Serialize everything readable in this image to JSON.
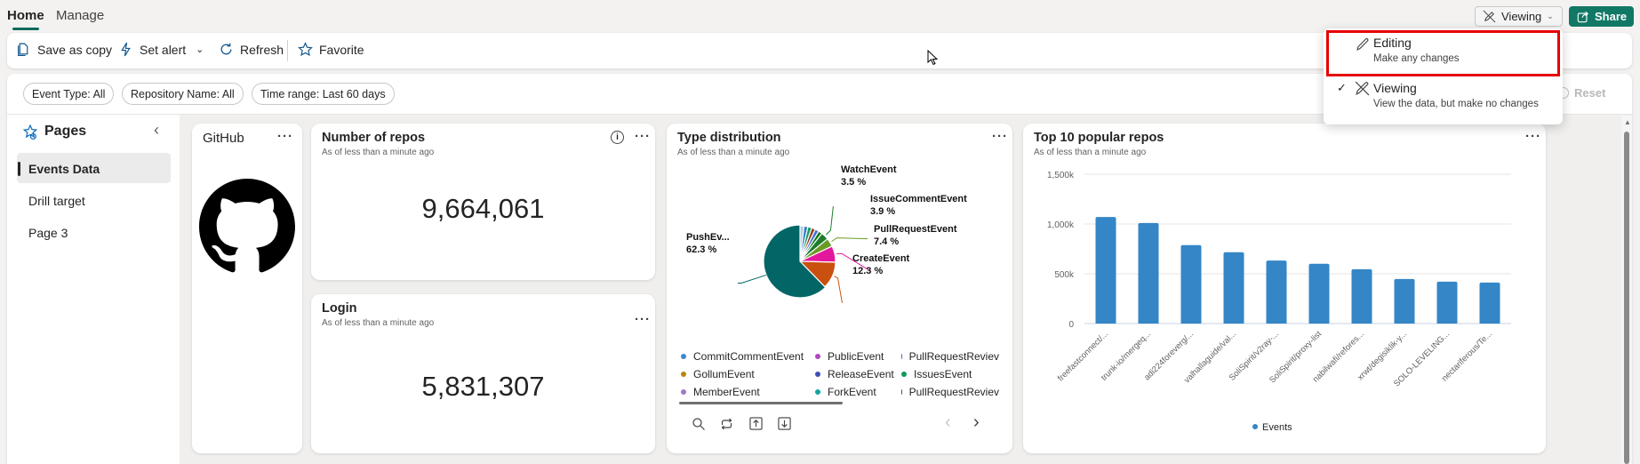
{
  "tabs": [
    {
      "label": "Home",
      "active": true
    },
    {
      "label": "Manage",
      "active": false
    }
  ],
  "toolbar": {
    "save_as_copy": "Save as copy",
    "set_alert": "Set alert",
    "refresh": "Refresh",
    "favorite": "Favorite"
  },
  "mode_button": {
    "label": "Viewing",
    "icon": "pencil-off-icon"
  },
  "share_button": {
    "label": "Share",
    "color": "#117865"
  },
  "mode_menu": {
    "items": [
      {
        "title": "Editing",
        "subtitle": "Make any changes",
        "selected": false,
        "highlighted": true
      },
      {
        "title": "Viewing",
        "subtitle": "View the data, but make no changes",
        "selected": true,
        "highlighted": false
      }
    ],
    "highlight_color": "#e60000"
  },
  "filters": [
    "Event Type: All",
    "Repository Name: All",
    "Time range: Last 60 days"
  ],
  "reset_label": "Reset",
  "pages": {
    "title": "Pages",
    "items": [
      {
        "label": "Events Data",
        "selected": true
      },
      {
        "label": "Drill target",
        "selected": false
      },
      {
        "label": "Page 3",
        "selected": false
      }
    ]
  },
  "cards": {
    "github": {
      "title": "GitHub"
    },
    "repos": {
      "title": "Number of repos",
      "subtitle": "As of less than a minute ago",
      "value": "9,664,061"
    },
    "login": {
      "title": "Login",
      "subtitle": "As of less than a minute ago",
      "value": "5,831,307"
    },
    "types": {
      "title": "Type distribution",
      "subtitle": "As of less than a minute ago"
    },
    "top": {
      "title": "Top 10 popular repos",
      "subtitle": "As of less than a minute ago"
    }
  },
  "chart_data": [
    {
      "type": "pie",
      "slices": [
        {
          "name": "",
          "value": 1.8,
          "color": "#a6cee3"
        },
        {
          "name": "",
          "value": 1.8,
          "color": "#3b7dbd"
        },
        {
          "name": "",
          "value": 1.8,
          "color": "#14a06a"
        },
        {
          "name": "",
          "value": 1.7,
          "color": "#8f3f17"
        },
        {
          "name": "",
          "value": 1.8,
          "color": "#4a6fe0"
        },
        {
          "name": "",
          "value": 1.7,
          "color": "#0b7a0b"
        },
        {
          "name": "WatchEvent",
          "value": 3.5,
          "label": "3.5 %",
          "color": "#1e7d2d"
        },
        {
          "name": "IssueCommentEvent",
          "value": 3.9,
          "label": "3.9 %",
          "color": "#6a9a25"
        },
        {
          "name": "PullRequestEvent",
          "value": 7.4,
          "label": "7.4 %",
          "color": "#e3179d"
        },
        {
          "name": "CreateEvent",
          "value": 12.3,
          "label": "12.3 %",
          "color": "#ca5010"
        },
        {
          "name": "PushEv...",
          "value": 62.3,
          "label": "62.3 %",
          "color": "#036666"
        }
      ],
      "legend": [
        {
          "name": "CommitCommentEvent",
          "color": "#3b88cf"
        },
        {
          "name": "PublicEvent",
          "color": "#b146c2"
        },
        {
          "name": "PullRequestReviev",
          "color": "#3a6fa8"
        },
        {
          "name": "GollumEvent",
          "color": "#b8860b"
        },
        {
          "name": "ReleaseEvent",
          "color": "#3d4fb5"
        },
        {
          "name": "IssuesEvent",
          "color": "#0e9a5a"
        },
        {
          "name": "MemberEvent",
          "color": "#9b7cc4"
        },
        {
          "name": "ForkEvent",
          "color": "#13a3a3"
        },
        {
          "name": "PullRequestReviev",
          "color": "#8f3312"
        }
      ]
    },
    {
      "type": "bar",
      "categories": [
        "freefastconnect/...",
        "trunk-io/mergeq...",
        "adi224foreverg/...",
        "valhallaguide/val...",
        "SoliSpirit/v2ray-...",
        "SoliSpirit/proxy-list",
        "nabilwafi/refores...",
        "xrwt/degisiklik-y...",
        "SOLO-LEVELING...",
        "nectariferous/Te..."
      ],
      "series": [
        {
          "name": "Events",
          "values": [
            1070000,
            1010000,
            788000,
            716000,
            633000,
            600000,
            546000,
            448000,
            421000,
            412000
          ],
          "color": "#3486c6"
        }
      ],
      "yticks": [
        "0",
        "500k",
        "1,000k",
        "1,500k"
      ],
      "ylim": [
        0,
        1500000
      ],
      "grid": true,
      "legend": "bottom"
    }
  ],
  "chart_toolbar": [
    "search-icon",
    "refresh-icon",
    "export-up-icon",
    "download-icon"
  ]
}
